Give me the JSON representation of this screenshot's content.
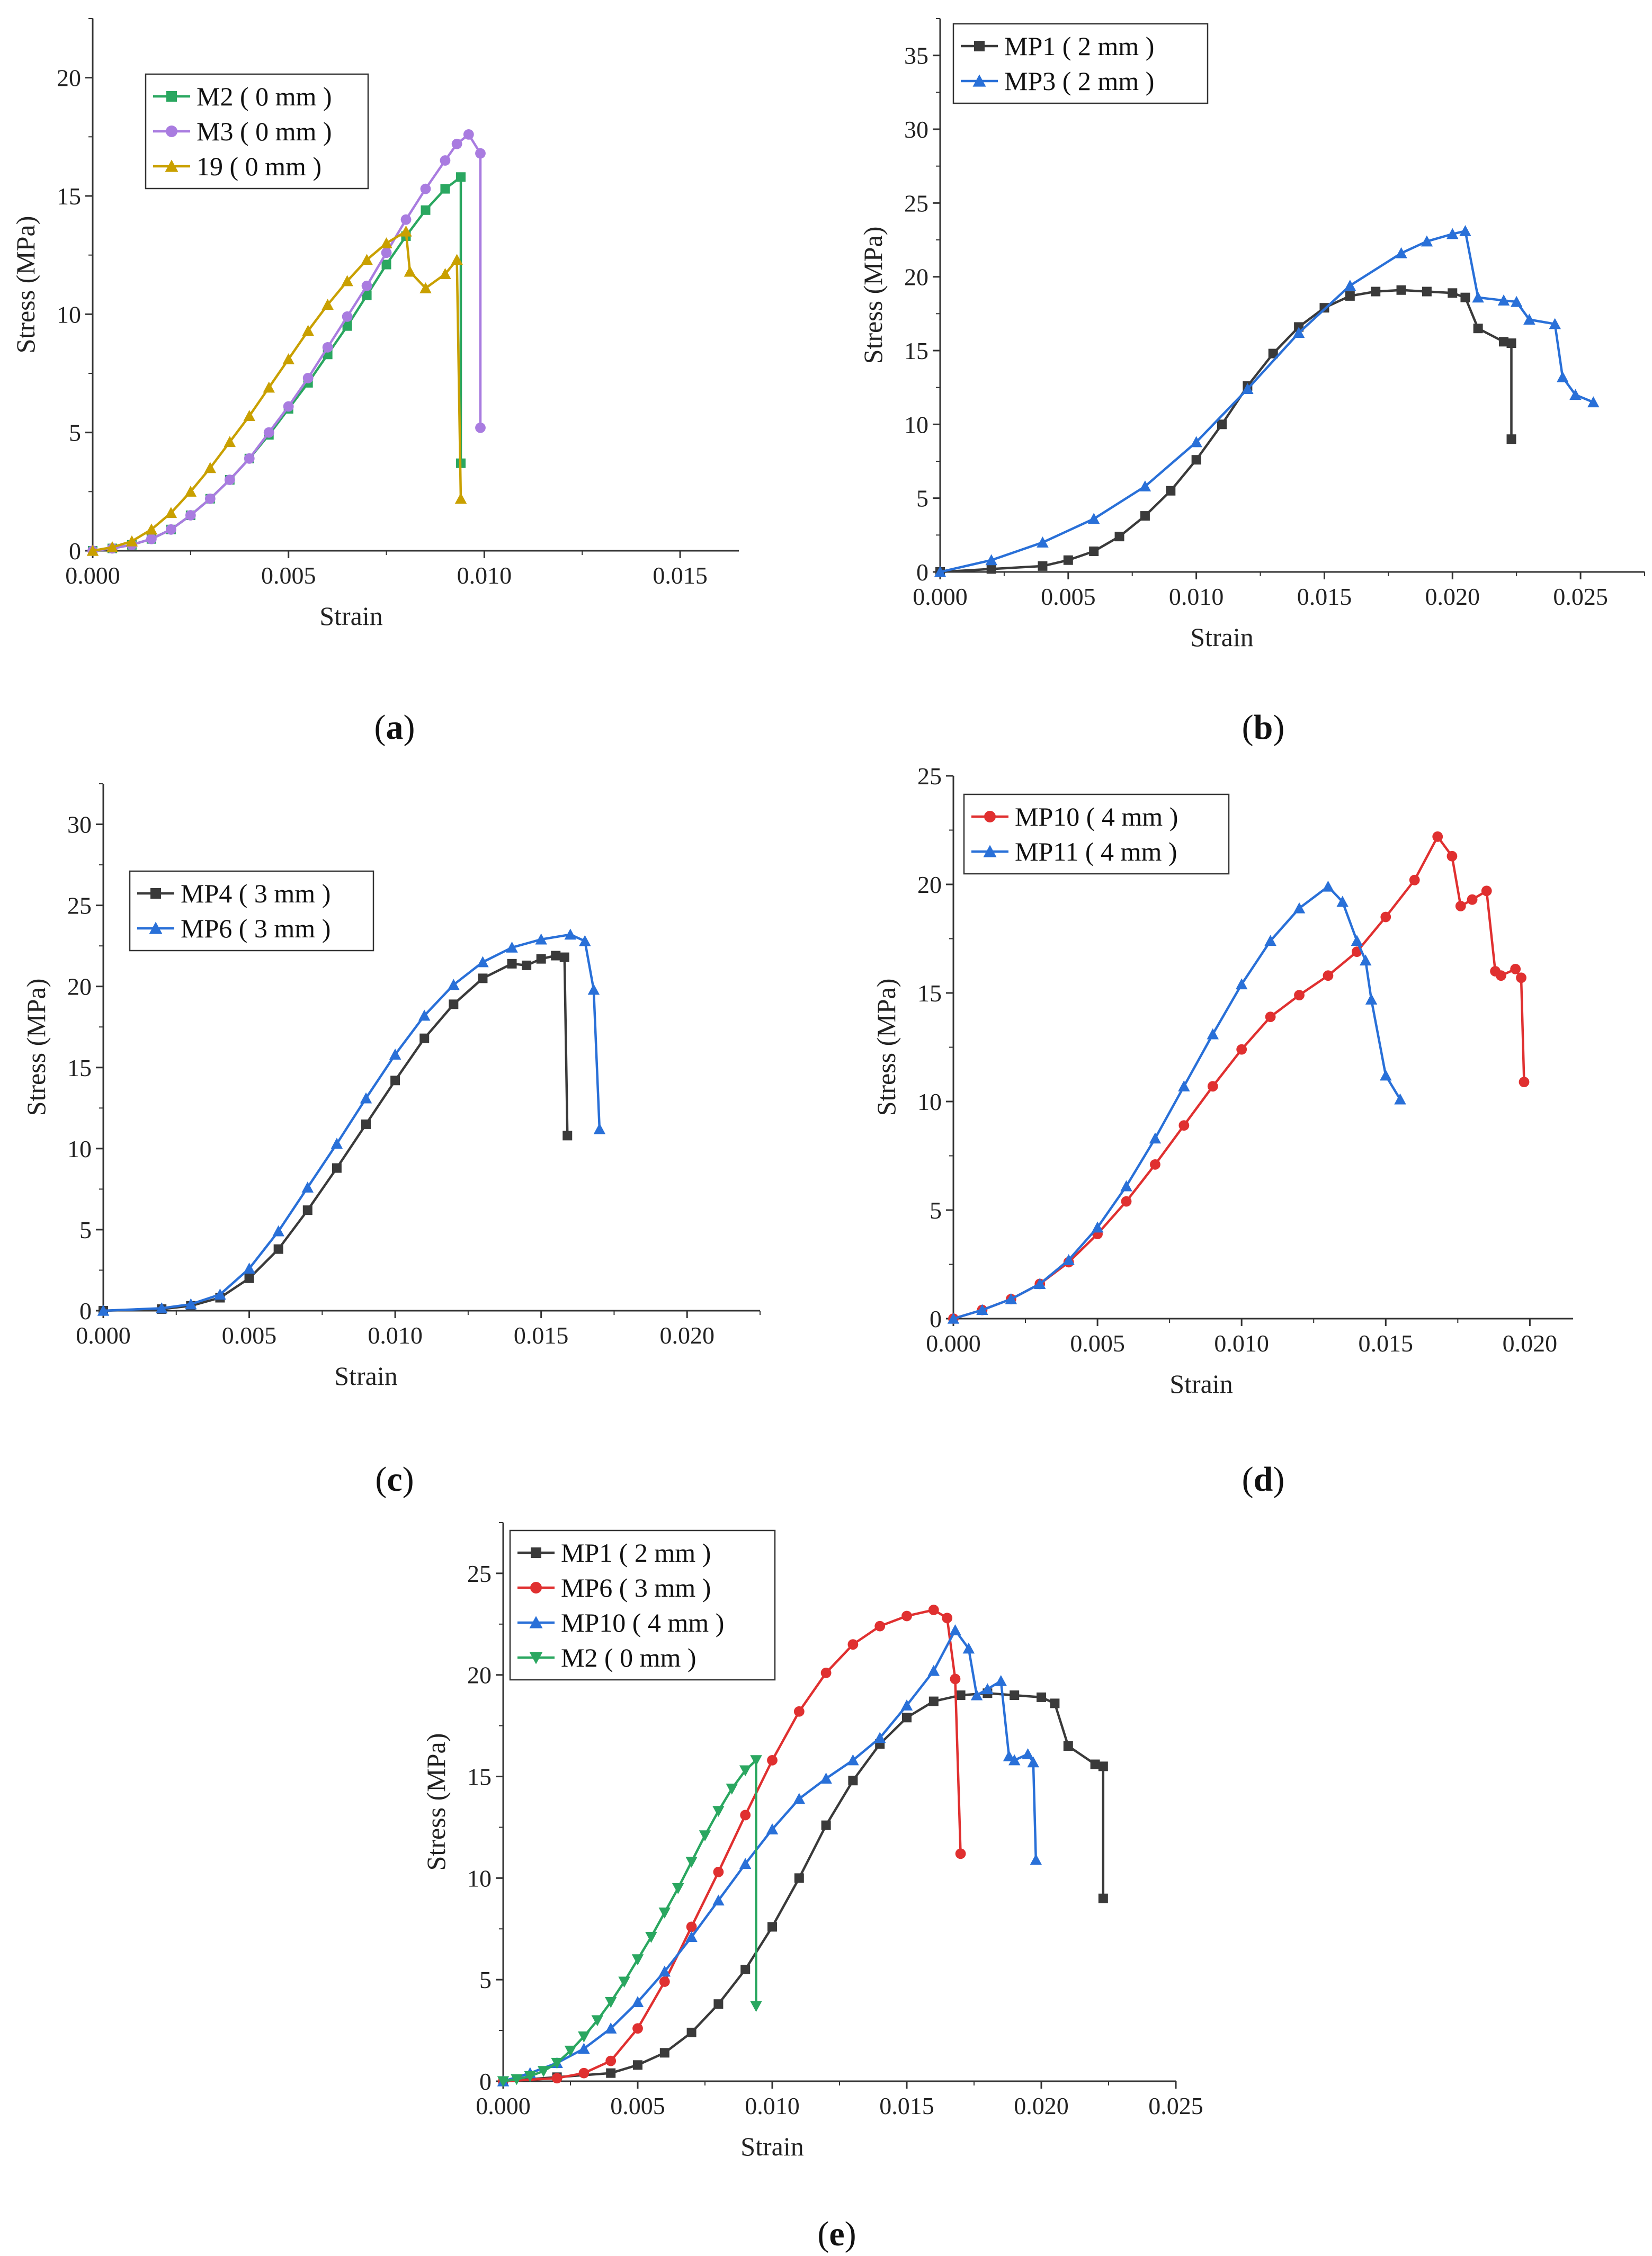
{
  "figure": {
    "panel_labels": [
      "a",
      "b",
      "c",
      "d",
      "e"
    ]
  },
  "chart_data": [
    {
      "id": "a",
      "type": "line",
      "xlabel": "Strain",
      "ylabel": "Stress (MPa)",
      "xlim": [
        0,
        0.0165
      ],
      "ylim": [
        0,
        22.5
      ],
      "xticks": [
        0.0,
        0.005,
        0.01,
        0.015
      ],
      "xtick_labels": [
        "0.000",
        "0.005",
        "0.010",
        "0.015"
      ],
      "yticks": [
        0,
        5,
        10,
        15,
        20
      ],
      "ytick_labels": [
        "0",
        "5",
        "10",
        "15",
        "20"
      ],
      "legend": "top-left",
      "series": [
        {
          "name": "M2 ( 0 mm )",
          "color": "#2aa760",
          "marker": "square",
          "x": [
            0,
            0.0005,
            0.001,
            0.0015,
            0.002,
            0.0025,
            0.003,
            0.0035,
            0.004,
            0.0045,
            0.005,
            0.0055,
            0.006,
            0.0065,
            0.007,
            0.0075,
            0.008,
            0.0085,
            0.009,
            0.0094,
            0.0094
          ],
          "y": [
            0,
            0.1,
            0.25,
            0.5,
            0.9,
            1.5,
            2.2,
            3,
            3.9,
            4.9,
            6,
            7.1,
            8.3,
            9.5,
            10.8,
            12.1,
            13.3,
            14.4,
            15.3,
            15.8,
            3.7
          ]
        },
        {
          "name": "M3 ( 0 mm )",
          "color": "#a97ce0",
          "marker": "circle",
          "x": [
            0,
            0.0005,
            0.001,
            0.0015,
            0.002,
            0.0025,
            0.003,
            0.0035,
            0.004,
            0.0045,
            0.005,
            0.0055,
            0.006,
            0.0065,
            0.007,
            0.0075,
            0.008,
            0.0085,
            0.009,
            0.0093,
            0.0096,
            0.0099,
            0.0099
          ],
          "y": [
            0,
            0.1,
            0.25,
            0.5,
            0.9,
            1.5,
            2.2,
            3,
            3.9,
            5,
            6.1,
            7.3,
            8.6,
            9.9,
            11.2,
            12.6,
            14,
            15.3,
            16.5,
            17.2,
            17.6,
            16.8,
            5.2
          ]
        },
        {
          "name": "19 ( 0 mm )",
          "color": "#c9a000",
          "marker": "triangle-up",
          "x": [
            0,
            0.0005,
            0.001,
            0.0015,
            0.002,
            0.0025,
            0.003,
            0.0035,
            0.004,
            0.0045,
            0.005,
            0.0055,
            0.006,
            0.0065,
            0.007,
            0.0075,
            0.008,
            0.0081,
            0.0085,
            0.009,
            0.0093,
            0.0094
          ],
          "y": [
            0,
            0.15,
            0.4,
            0.9,
            1.6,
            2.5,
            3.5,
            4.6,
            5.7,
            6.9,
            8.1,
            9.3,
            10.4,
            11.4,
            12.3,
            13.0,
            13.5,
            11.8,
            11.1,
            11.7,
            12.3,
            2.2
          ]
        }
      ]
    },
    {
      "id": "b",
      "type": "line",
      "xlabel": "Strain",
      "ylabel": "Stress (MPa)",
      "xlim": [
        0,
        0.0275
      ],
      "ylim": [
        0,
        37.5
      ],
      "xticks": [
        0.0,
        0.005,
        0.01,
        0.015,
        0.02,
        0.025
      ],
      "xtick_labels": [
        "0.000",
        "0.005",
        "0.010",
        "0.015",
        "0.020",
        "0.025"
      ],
      "yticks": [
        0,
        5,
        10,
        15,
        20,
        25,
        30,
        35
      ],
      "ytick_labels": [
        "0",
        "5",
        "10",
        "15",
        "20",
        "25",
        "30",
        "35"
      ],
      "legend": "top-left",
      "series": [
        {
          "name": "MP1 ( 2 mm )",
          "color": "#3a3a3a",
          "marker": "square",
          "x": [
            0,
            0.002,
            0.004,
            0.005,
            0.006,
            0.007,
            0.008,
            0.009,
            0.01,
            0.011,
            0.012,
            0.013,
            0.014,
            0.015,
            0.016,
            0.017,
            0.018,
            0.019,
            0.02,
            0.0205,
            0.021,
            0.022,
            0.0223,
            0.0223
          ],
          "y": [
            0,
            0.2,
            0.4,
            0.8,
            1.4,
            2.4,
            3.8,
            5.5,
            7.6,
            10,
            12.6,
            14.8,
            16.6,
            17.9,
            18.7,
            19,
            19.1,
            19,
            18.9,
            18.6,
            16.5,
            15.6,
            15.5,
            9
          ]
        },
        {
          "name": "MP3 ( 2 mm )",
          "color": "#2970d8",
          "marker": "triangle-up",
          "x": [
            0,
            0.002,
            0.004,
            0.006,
            0.008,
            0.01,
            0.012,
            0.014,
            0.016,
            0.018,
            0.019,
            0.02,
            0.0205,
            0.021,
            0.022,
            0.0225,
            0.023,
            0.024,
            0.0243,
            0.0248,
            0.0255
          ],
          "y": [
            0,
            0.8,
            2,
            3.6,
            5.8,
            8.8,
            12.4,
            16.2,
            19.4,
            21.6,
            22.4,
            22.9,
            23.1,
            18.6,
            18.4,
            18.3,
            17.1,
            16.8,
            13.2,
            12,
            11.5
          ]
        }
      ]
    },
    {
      "id": "c",
      "type": "line",
      "xlabel": "Strain",
      "ylabel": "Stress (MPa)",
      "xlim": [
        0,
        0.0225
      ],
      "ylim": [
        0,
        32.5
      ],
      "xticks": [
        0.0,
        0.005,
        0.01,
        0.015,
        0.02
      ],
      "xtick_labels": [
        "0.000",
        "0.005",
        "0.010",
        "0.015",
        "0.020"
      ],
      "yticks": [
        0,
        5,
        10,
        15,
        20,
        25,
        30
      ],
      "ytick_labels": [
        "0",
        "5",
        "10",
        "15",
        "20",
        "25",
        "30"
      ],
      "legend": "upper-left",
      "series": [
        {
          "name": "MP4 ( 3 mm )",
          "color": "#3a3a3a",
          "marker": "square",
          "x": [
            0,
            0.002,
            0.003,
            0.004,
            0.005,
            0.006,
            0.007,
            0.008,
            0.009,
            0.01,
            0.011,
            0.012,
            0.013,
            0.014,
            0.0145,
            0.015,
            0.0155,
            0.0158,
            0.0159
          ],
          "y": [
            0,
            0.1,
            0.3,
            0.8,
            2,
            3.8,
            6.2,
            8.8,
            11.5,
            14.2,
            16.8,
            18.9,
            20.5,
            21.4,
            21.3,
            21.7,
            21.9,
            21.8,
            10.8
          ]
        },
        {
          "name": "MP6 ( 3 mm )",
          "color": "#2970d8",
          "marker": "triangle-up",
          "x": [
            0,
            0.002,
            0.003,
            0.004,
            0.005,
            0.006,
            0.007,
            0.008,
            0.009,
            0.01,
            0.011,
            0.012,
            0.013,
            0.014,
            0.015,
            0.016,
            0.0165,
            0.0168,
            0.017
          ],
          "y": [
            0,
            0.15,
            0.4,
            1,
            2.6,
            4.9,
            7.6,
            10.3,
            13.1,
            15.8,
            18.2,
            20.1,
            21.5,
            22.4,
            22.9,
            23.2,
            22.8,
            19.8,
            11.2
          ]
        }
      ]
    },
    {
      "id": "d",
      "type": "line",
      "xlabel": "Strain",
      "ylabel": "Stress (MPa)",
      "xlim": [
        0,
        0.0215
      ],
      "ylim": [
        0,
        25
      ],
      "xticks": [
        0.0,
        0.005,
        0.01,
        0.015,
        0.02
      ],
      "xtick_labels": [
        "0.000",
        "0.005",
        "0.010",
        "0.015",
        "0.020"
      ],
      "yticks": [
        0,
        5,
        10,
        15,
        20,
        25
      ],
      "ytick_labels": [
        "0",
        "5",
        "10",
        "15",
        "20",
        "25"
      ],
      "legend": "top-left",
      "series": [
        {
          "name": "MP10 ( 4 mm )",
          "color": "#e03030",
          "marker": "circle",
          "x": [
            0,
            0.001,
            0.002,
            0.003,
            0.004,
            0.005,
            0.006,
            0.007,
            0.008,
            0.009,
            0.01,
            0.011,
            0.012,
            0.013,
            0.014,
            0.015,
            0.016,
            0.0168,
            0.0173,
            0.0176,
            0.018,
            0.0185,
            0.0188,
            0.019,
            0.0195,
            0.0197,
            0.0198
          ],
          "y": [
            0,
            0.4,
            0.9,
            1.6,
            2.6,
            3.9,
            5.4,
            7.1,
            8.9,
            10.7,
            12.4,
            13.9,
            14.9,
            15.8,
            16.9,
            18.5,
            20.2,
            22.2,
            21.3,
            19,
            19.3,
            19.7,
            16,
            15.8,
            16.1,
            15.7,
            10.9
          ]
        },
        {
          "name": "MP11 ( 4 mm )",
          "color": "#2970d8",
          "marker": "triangle-up",
          "x": [
            0,
            0.001,
            0.002,
            0.003,
            0.004,
            0.005,
            0.006,
            0.007,
            0.008,
            0.009,
            0.01,
            0.011,
            0.012,
            0.013,
            0.0135,
            0.014,
            0.0143,
            0.0145,
            0.015,
            0.0155
          ],
          "y": [
            0,
            0.4,
            0.9,
            1.6,
            2.7,
            4.2,
            6.1,
            8.3,
            10.7,
            13.1,
            15.4,
            17.4,
            18.9,
            19.9,
            19.2,
            17.4,
            16.5,
            14.7,
            11.2,
            10.1
          ]
        }
      ]
    },
    {
      "id": "e",
      "type": "line",
      "xlabel": "Strain",
      "ylabel": "Stress (MPa)",
      "xlim": [
        0,
        0.025
      ],
      "ylim": [
        0,
        27.5
      ],
      "xticks": [
        0.0,
        0.005,
        0.01,
        0.015,
        0.02,
        0.025
      ],
      "xtick_labels": [
        "0.000",
        "0.005",
        "0.010",
        "0.015",
        "0.020",
        "0.025"
      ],
      "yticks": [
        0,
        5,
        10,
        15,
        20,
        25
      ],
      "ytick_labels": [
        "0",
        "5",
        "10",
        "15",
        "20",
        "25"
      ],
      "legend": "top-left",
      "series": [
        {
          "name": "MP1 ( 2 mm )",
          "color": "#3a3a3a",
          "marker": "square",
          "x": [
            0,
            0.002,
            0.004,
            0.005,
            0.006,
            0.007,
            0.008,
            0.009,
            0.01,
            0.011,
            0.012,
            0.013,
            0.014,
            0.015,
            0.016,
            0.017,
            0.018,
            0.019,
            0.02,
            0.0205,
            0.021,
            0.022,
            0.0223,
            0.0223
          ],
          "y": [
            0,
            0.2,
            0.4,
            0.8,
            1.4,
            2.4,
            3.8,
            5.5,
            7.6,
            10,
            12.6,
            14.8,
            16.6,
            17.9,
            18.7,
            19,
            19.1,
            19,
            18.9,
            18.6,
            16.5,
            15.6,
            15.5,
            9
          ]
        },
        {
          "name": "MP6 ( 3 mm )",
          "color": "#e03030",
          "marker": "circle",
          "x": [
            0,
            0.002,
            0.003,
            0.004,
            0.005,
            0.006,
            0.007,
            0.008,
            0.009,
            0.01,
            0.011,
            0.012,
            0.013,
            0.014,
            0.015,
            0.016,
            0.0165,
            0.0168,
            0.017
          ],
          "y": [
            0,
            0.15,
            0.4,
            1,
            2.6,
            4.9,
            7.6,
            10.3,
            13.1,
            15.8,
            18.2,
            20.1,
            21.5,
            22.4,
            22.9,
            23.2,
            22.8,
            19.8,
            11.2
          ]
        },
        {
          "name": "MP10 ( 4 mm )",
          "color": "#2970d8",
          "marker": "triangle-up",
          "x": [
            0,
            0.001,
            0.002,
            0.003,
            0.004,
            0.005,
            0.006,
            0.007,
            0.008,
            0.009,
            0.01,
            0.011,
            0.012,
            0.013,
            0.014,
            0.015,
            0.016,
            0.0168,
            0.0173,
            0.0176,
            0.018,
            0.0185,
            0.0188,
            0.019,
            0.0195,
            0.0197,
            0.0198
          ],
          "y": [
            0,
            0.4,
            0.9,
            1.6,
            2.6,
            3.9,
            5.4,
            7.1,
            8.9,
            10.7,
            12.4,
            13.9,
            14.9,
            15.8,
            16.9,
            18.5,
            20.2,
            22.2,
            21.3,
            19,
            19.3,
            19.7,
            16,
            15.8,
            16.1,
            15.7,
            10.9
          ]
        },
        {
          "name": "M2 ( 0 mm )",
          "color": "#2aa760",
          "marker": "triangle-down",
          "x": [
            0,
            0.0005,
            0.001,
            0.0015,
            0.002,
            0.0025,
            0.003,
            0.0035,
            0.004,
            0.0045,
            0.005,
            0.0055,
            0.006,
            0.0065,
            0.007,
            0.0075,
            0.008,
            0.0085,
            0.009,
            0.0094,
            0.0094
          ],
          "y": [
            0,
            0.1,
            0.25,
            0.5,
            0.9,
            1.5,
            2.2,
            3,
            3.9,
            4.9,
            6,
            7.1,
            8.3,
            9.5,
            10.8,
            12.1,
            13.3,
            14.4,
            15.3,
            15.8,
            3.7
          ]
        }
      ]
    }
  ]
}
